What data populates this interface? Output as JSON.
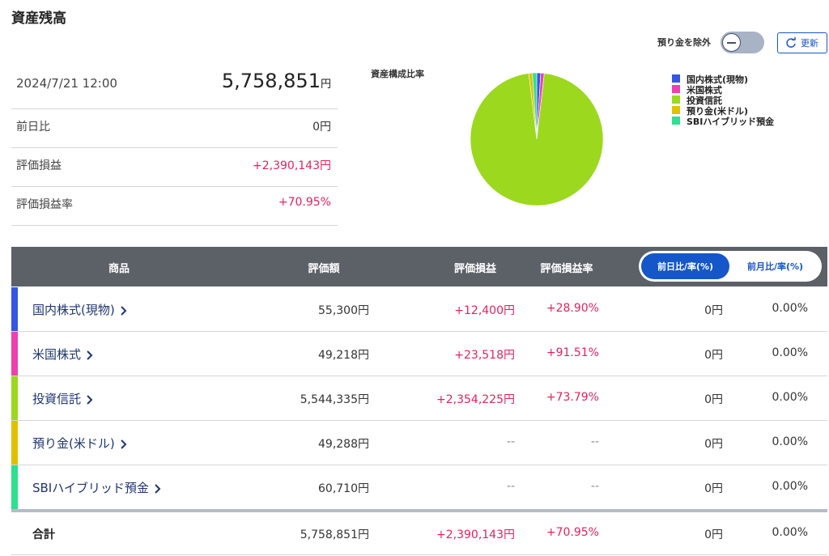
{
  "header": {
    "title": "資産残高",
    "exclude_label": "預り金を除外",
    "refresh": "更新"
  },
  "summary": {
    "datetime": "2024/7/21 12:00",
    "total": "5,758,851",
    "total_unit": "円",
    "rows": [
      {
        "label": "前日比",
        "value": "0円"
      },
      {
        "label": "評価損益",
        "value": "+2,390,143円"
      },
      {
        "label": "評価損益率",
        "value": "+70.95%"
      }
    ]
  },
  "chart_data": {
    "type": "pie",
    "title": "資産構成比率",
    "categories": [
      "国内株式(現物)",
      "米国株式",
      "投資信託",
      "預り金(米ドル)",
      "SBIハイブリッド預金"
    ],
    "values": [
      55300,
      49218,
      5544335,
      49288,
      60710
    ],
    "colors": [
      "#3456e0",
      "#f03fae",
      "#9bd81e",
      "#e0c000",
      "#2fe08e"
    ]
  },
  "table": {
    "headers": [
      "商品",
      "評価額",
      "評価損益",
      "評価損益率"
    ],
    "tabs": [
      "前日比/率(%)",
      "前月比/率(%)"
    ],
    "rows": [
      {
        "name": "国内株式(現物)",
        "color": "#3456e0",
        "cells": [
          "55,300円",
          "+12,400円",
          "+28.90%",
          "0円",
          "0.00%"
        ]
      },
      {
        "name": "米国株式",
        "color": "#f03fae",
        "cells": [
          "49,218円",
          "+23,518円",
          "+91.51%",
          "0円",
          "0.00%"
        ]
      },
      {
        "name": "投資信託",
        "color": "#9bd81e",
        "cells": [
          "5,544,335円",
          "+2,354,225円",
          "+73.79%",
          "0円",
          "0.00%"
        ]
      },
      {
        "name": "預り金(米ドル)",
        "color": "#e0c000",
        "cells": [
          "49,288円",
          "--",
          "--",
          "0円",
          "0.00%"
        ]
      },
      {
        "name": "SBIハイブリッド預金",
        "color": "#2fe08e",
        "cells": [
          "60,710円",
          "--",
          "--",
          "0円",
          "0.00%"
        ]
      }
    ],
    "total": {
      "name": "合計",
      "cells": [
        "5,758,851円",
        "+2,390,143円",
        "+70.95%",
        "0円",
        "0.00%"
      ]
    }
  }
}
